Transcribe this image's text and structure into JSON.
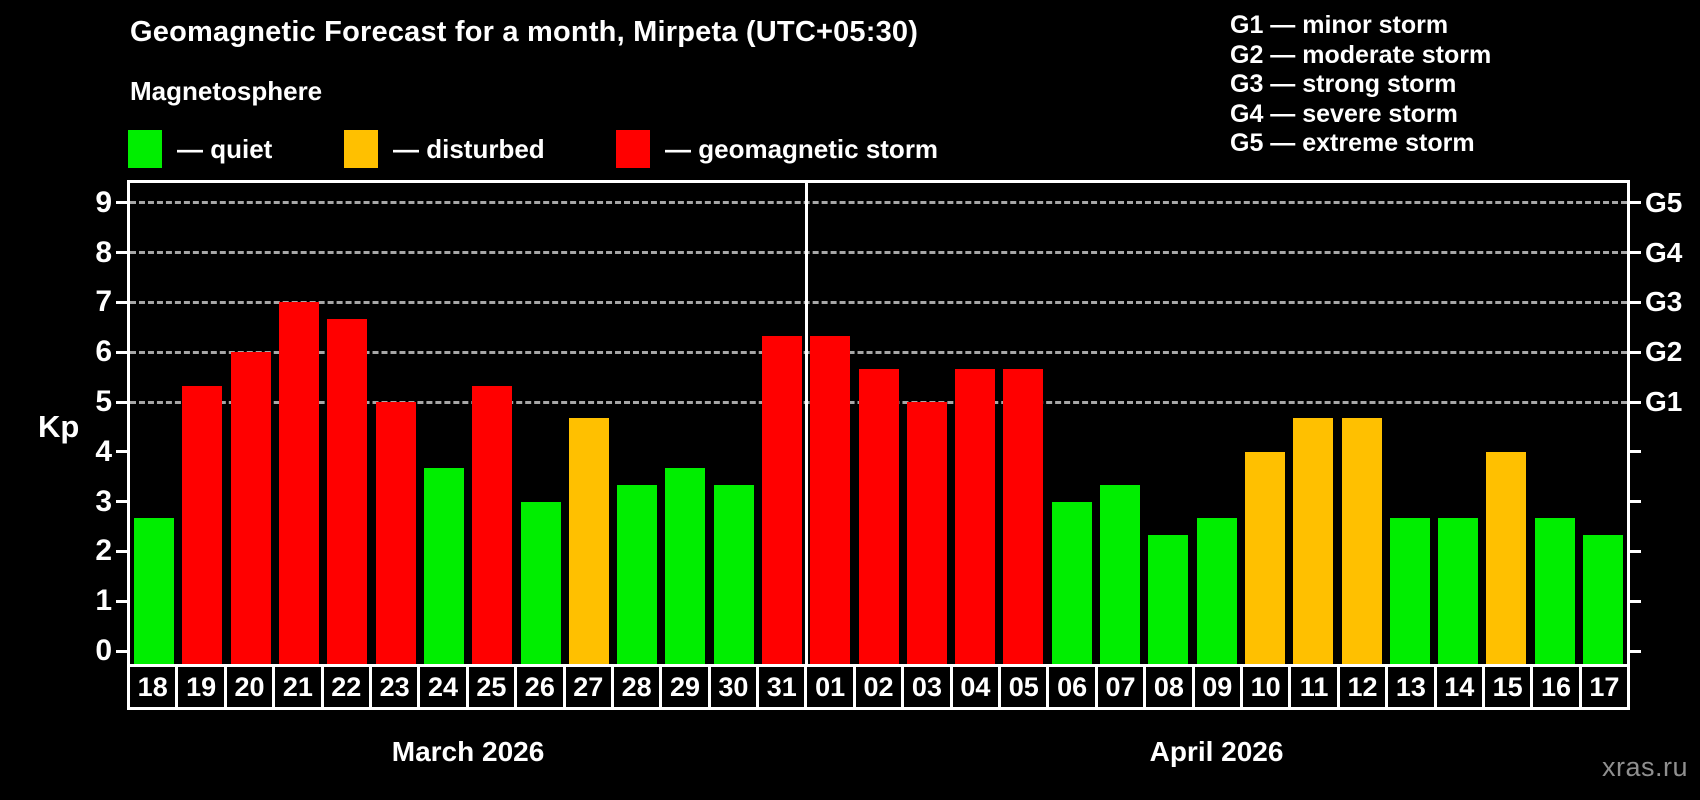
{
  "header": {
    "title": "Geomagnetic Forecast for a month, Mirpeta (UTC+05:30)",
    "subtitle": "Magnetosphere"
  },
  "legend": {
    "items": [
      {
        "key": "quiet",
        "label": "— quiet",
        "color": "#00ee00",
        "x": 128
      },
      {
        "key": "disturbed",
        "label": "— disturbed",
        "color": "#ffc000",
        "x": 344
      },
      {
        "key": "storm",
        "label": "— geomagnetic storm",
        "color": "#ff0000",
        "x": 616
      }
    ]
  },
  "g_scale_legend": {
    "items": [
      "G1 — minor storm",
      "G2 — moderate storm",
      "G3 — strong storm",
      "G4 — severe storm",
      "G5 — extreme storm"
    ]
  },
  "chart_data": {
    "type": "bar",
    "title": "Geomagnetic Forecast for a month, Mirpeta (UTC+05:30)",
    "ylabel": "Kp",
    "ylim": [
      0,
      9
    ],
    "yticks": [
      0,
      1,
      2,
      3,
      4,
      5,
      6,
      7,
      8,
      9
    ],
    "gridlines_at_kp": [
      5,
      6,
      7,
      8,
      9
    ],
    "grid": "dashed, only at storm levels",
    "legend_position": "top",
    "right_axis_labels": [
      {
        "label": "G1",
        "kp": 5
      },
      {
        "label": "G2",
        "kp": 6
      },
      {
        "label": "G3",
        "kp": 7
      },
      {
        "label": "G4",
        "kp": 8
      },
      {
        "label": "G5",
        "kp": 9
      }
    ],
    "months": [
      {
        "label": "March 2026",
        "start_index": 0,
        "days": 14
      },
      {
        "label": "April 2026",
        "start_index": 14,
        "days": 17
      }
    ],
    "categories": [
      "18",
      "19",
      "20",
      "21",
      "22",
      "23",
      "24",
      "25",
      "26",
      "27",
      "28",
      "29",
      "30",
      "31",
      "01",
      "02",
      "03",
      "04",
      "05",
      "06",
      "07",
      "08",
      "09",
      "10",
      "11",
      "12",
      "13",
      "14",
      "15",
      "16",
      "17"
    ],
    "values": [
      2.67,
      5.33,
      6,
      7,
      6.67,
      5,
      3.67,
      5.33,
      3,
      4.67,
      3.33,
      3.67,
      3.33,
      6.33,
      6.33,
      5.67,
      5,
      5.67,
      5.67,
      3,
      3.33,
      2.33,
      2.67,
      4,
      4.67,
      4.67,
      2.67,
      2.67,
      4,
      2.67,
      2.33
    ],
    "statuses": [
      "quiet",
      "storm",
      "storm",
      "storm",
      "storm",
      "storm",
      "quiet",
      "storm",
      "quiet",
      "disturbed",
      "quiet",
      "quiet",
      "quiet",
      "storm",
      "storm",
      "storm",
      "storm",
      "storm",
      "storm",
      "quiet",
      "quiet",
      "quiet",
      "quiet",
      "disturbed",
      "disturbed",
      "disturbed",
      "quiet",
      "quiet",
      "disturbed",
      "quiet",
      "quiet"
    ],
    "status_colors": {
      "quiet": "#00ee00",
      "disturbed": "#ffc000",
      "storm": "#ff0000"
    }
  },
  "watermark": "xras.ru"
}
